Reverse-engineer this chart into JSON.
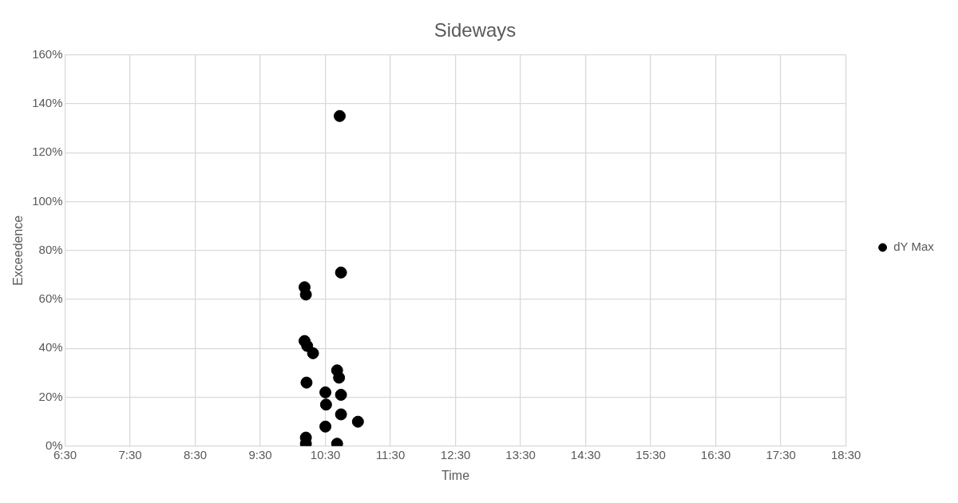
{
  "chart_data": {
    "type": "scatter",
    "title": "Sideways",
    "xlabel": "Time",
    "ylabel": "Exceedence",
    "xlim": [
      6.5,
      18.5
    ],
    "xticks": [
      {
        "value": 6.5,
        "label": "6:30"
      },
      {
        "value": 7.5,
        "label": "7:30"
      },
      {
        "value": 8.5,
        "label": "8:30"
      },
      {
        "value": 9.5,
        "label": "9:30"
      },
      {
        "value": 10.5,
        "label": "10:30"
      },
      {
        "value": 11.5,
        "label": "11:30"
      },
      {
        "value": 12.5,
        "label": "12:30"
      },
      {
        "value": 13.5,
        "label": "13:30"
      },
      {
        "value": 14.5,
        "label": "14:30"
      },
      {
        "value": 15.5,
        "label": "15:30"
      },
      {
        "value": 16.5,
        "label": "16:30"
      },
      {
        "value": 17.5,
        "label": "17:30"
      },
      {
        "value": 18.5,
        "label": "18:30"
      }
    ],
    "ylim": [
      0,
      160
    ],
    "yticks": [
      {
        "value": 0,
        "label": "0%"
      },
      {
        "value": 20,
        "label": "20%"
      },
      {
        "value": 40,
        "label": "40%"
      },
      {
        "value": 60,
        "label": "60%"
      },
      {
        "value": 80,
        "label": "80%"
      },
      {
        "value": 100,
        "label": "100%"
      },
      {
        "value": 120,
        "label": "120%"
      },
      {
        "value": 140,
        "label": "140%"
      },
      {
        "value": 160,
        "label": "160%"
      }
    ],
    "grid": true,
    "legend": "right",
    "marker": "circle",
    "series": [
      {
        "name": "dY Max",
        "color": "#000000",
        "x": [
          10.72,
          10.74,
          10.18,
          10.2,
          10.18,
          10.22,
          10.31,
          10.68,
          10.71,
          10.21,
          10.5,
          10.74,
          10.51,
          10.74,
          11.0,
          10.5,
          10.2,
          10.2,
          10.68
        ],
        "values": [
          135,
          71,
          65,
          62,
          43,
          41,
          38,
          31,
          28,
          26,
          22,
          21,
          17,
          13,
          10,
          8,
          3.5,
          1,
          1
        ]
      }
    ]
  }
}
